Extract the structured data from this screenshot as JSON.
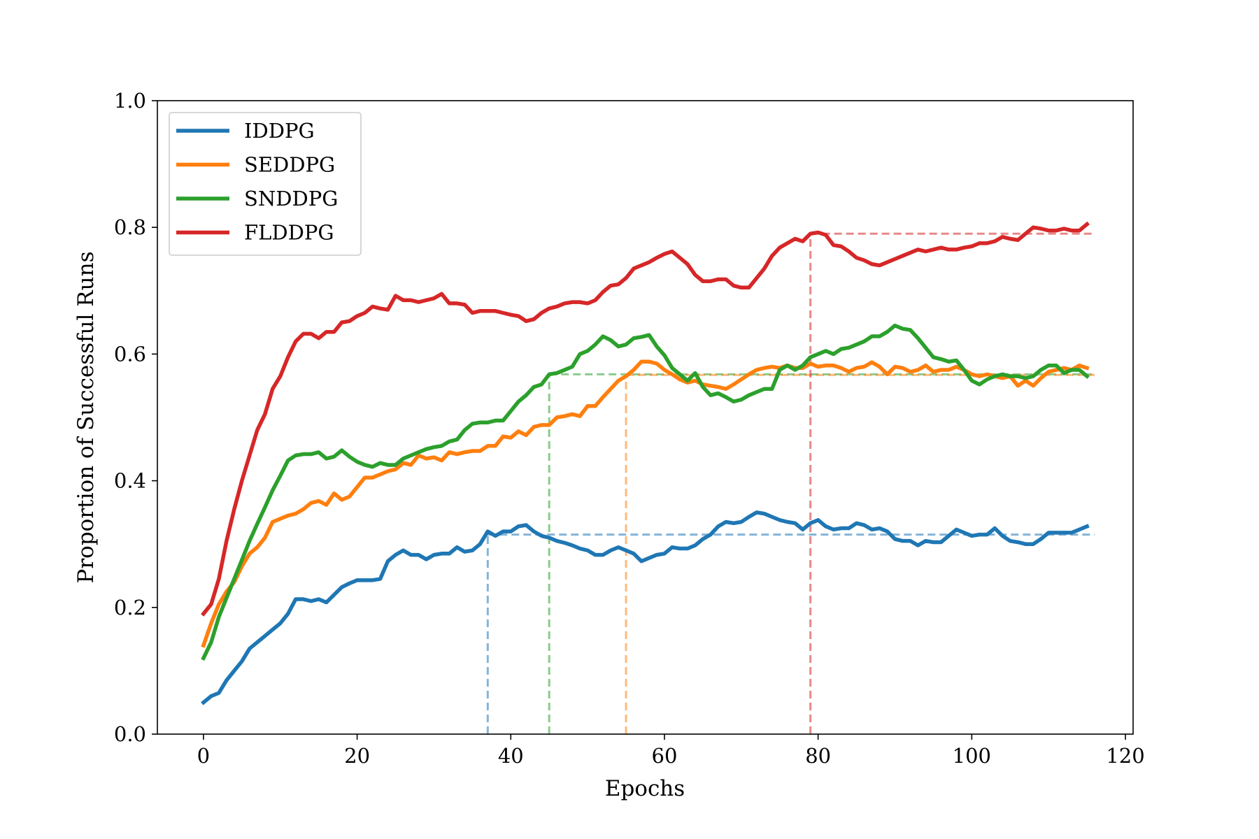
{
  "chart_data": {
    "type": "line",
    "title": "",
    "xlabel": "Epochs",
    "ylabel": "Proportion of Successful Runs",
    "xlim": [
      -6,
      121
    ],
    "ylim": [
      0.0,
      1.0
    ],
    "xticks": [
      0,
      20,
      40,
      60,
      80,
      100,
      120
    ],
    "xtick_labels": [
      "0",
      "20",
      "40",
      "60",
      "80",
      "100",
      "120"
    ],
    "yticks": [
      0.0,
      0.2,
      0.4,
      0.6,
      0.8,
      1.0
    ],
    "ytick_labels": [
      "0.0",
      "0.2",
      "0.4",
      "0.6",
      "0.8",
      "1.0"
    ],
    "grid": false,
    "legend": "top-left",
    "x": [
      0,
      1,
      2,
      3,
      4,
      5,
      6,
      7,
      8,
      9,
      10,
      11,
      12,
      13,
      14,
      15,
      16,
      17,
      18,
      19,
      20,
      21,
      22,
      23,
      24,
      25,
      26,
      27,
      28,
      29,
      30,
      31,
      32,
      33,
      34,
      35,
      36,
      37,
      38,
      39,
      40,
      41,
      42,
      43,
      44,
      45,
      46,
      47,
      48,
      49,
      50,
      51,
      52,
      53,
      54,
      55,
      56,
      57,
      58,
      59,
      60,
      61,
      62,
      63,
      64,
      65,
      66,
      67,
      68,
      69,
      70,
      71,
      72,
      73,
      74,
      75,
      76,
      77,
      78,
      79,
      80,
      81,
      82,
      83,
      84,
      85,
      86,
      87,
      88,
      89,
      90,
      91,
      92,
      93,
      94,
      95,
      96,
      97,
      98,
      99,
      100,
      101,
      102,
      103,
      104,
      105,
      106,
      107,
      108,
      109,
      110,
      111,
      112,
      113,
      114,
      115
    ],
    "series": [
      {
        "name": "IDDPG",
        "color": "#1f77b4",
        "values": [
          0.05,
          0.06,
          0.065,
          0.085,
          0.1,
          0.115,
          0.135,
          0.145,
          0.155,
          0.165,
          0.175,
          0.19,
          0.213,
          0.213,
          0.21,
          0.213,
          0.208,
          0.22,
          0.232,
          0.238,
          0.243,
          0.243,
          0.243,
          0.245,
          0.273,
          0.283,
          0.29,
          0.283,
          0.283,
          0.276,
          0.283,
          0.285,
          0.285,
          0.295,
          0.288,
          0.29,
          0.3,
          0.32,
          0.313,
          0.32,
          0.32,
          0.328,
          0.33,
          0.32,
          0.313,
          0.31,
          0.305,
          0.302,
          0.298,
          0.293,
          0.29,
          0.283,
          0.283,
          0.29,
          0.295,
          0.29,
          0.285,
          0.273,
          0.278,
          0.283,
          0.285,
          0.295,
          0.293,
          0.293,
          0.298,
          0.308,
          0.315,
          0.328,
          0.335,
          0.333,
          0.335,
          0.343,
          0.35,
          0.348,
          0.343,
          0.338,
          0.335,
          0.333,
          0.323,
          0.333,
          0.338,
          0.328,
          0.323,
          0.325,
          0.325,
          0.333,
          0.33,
          0.323,
          0.325,
          0.32,
          0.308,
          0.305,
          0.305,
          0.298,
          0.305,
          0.303,
          0.303,
          0.313,
          0.323,
          0.318,
          0.313,
          0.315,
          0.315,
          0.325,
          0.313,
          0.305,
          0.303,
          0.3,
          0.3,
          0.308,
          0.318,
          0.318,
          0.318,
          0.318,
          0.323,
          0.328
        ]
      },
      {
        "name": "SEDDPG",
        "color": "#ff7f0e",
        "values": [
          0.14,
          0.175,
          0.205,
          0.225,
          0.24,
          0.265,
          0.285,
          0.295,
          0.31,
          0.335,
          0.34,
          0.345,
          0.348,
          0.355,
          0.365,
          0.368,
          0.362,
          0.38,
          0.37,
          0.375,
          0.39,
          0.405,
          0.405,
          0.41,
          0.415,
          0.418,
          0.428,
          0.425,
          0.44,
          0.435,
          0.437,
          0.432,
          0.445,
          0.442,
          0.445,
          0.447,
          0.447,
          0.455,
          0.455,
          0.47,
          0.468,
          0.478,
          0.472,
          0.485,
          0.488,
          0.488,
          0.5,
          0.502,
          0.505,
          0.502,
          0.518,
          0.518,
          0.532,
          0.545,
          0.558,
          0.565,
          0.575,
          0.588,
          0.588,
          0.585,
          0.575,
          0.568,
          0.56,
          0.555,
          0.558,
          0.552,
          0.55,
          0.548,
          0.545,
          0.552,
          0.56,
          0.568,
          0.575,
          0.578,
          0.58,
          0.578,
          0.582,
          0.578,
          0.578,
          0.585,
          0.58,
          0.582,
          0.582,
          0.578,
          0.572,
          0.578,
          0.58,
          0.587,
          0.58,
          0.568,
          0.58,
          0.578,
          0.572,
          0.575,
          0.582,
          0.572,
          0.575,
          0.575,
          0.58,
          0.575,
          0.568,
          0.565,
          0.568,
          0.565,
          0.562,
          0.565,
          0.55,
          0.558,
          0.55,
          0.562,
          0.572,
          0.575,
          0.578,
          0.575,
          0.582,
          0.578
        ]
      },
      {
        "name": "SNDDPG",
        "color": "#2ca02c",
        "values": [
          0.12,
          0.145,
          0.185,
          0.215,
          0.245,
          0.275,
          0.305,
          0.332,
          0.358,
          0.385,
          0.408,
          0.432,
          0.44,
          0.442,
          0.442,
          0.445,
          0.435,
          0.438,
          0.448,
          0.438,
          0.43,
          0.425,
          0.422,
          0.428,
          0.425,
          0.425,
          0.435,
          0.44,
          0.445,
          0.45,
          0.453,
          0.455,
          0.462,
          0.465,
          0.48,
          0.49,
          0.492,
          0.492,
          0.495,
          0.495,
          0.51,
          0.525,
          0.535,
          0.548,
          0.552,
          0.568,
          0.57,
          0.575,
          0.58,
          0.6,
          0.605,
          0.615,
          0.628,
          0.622,
          0.612,
          0.615,
          0.625,
          0.627,
          0.63,
          0.612,
          0.598,
          0.578,
          0.568,
          0.558,
          0.57,
          0.548,
          0.535,
          0.538,
          0.532,
          0.525,
          0.528,
          0.535,
          0.54,
          0.545,
          0.545,
          0.575,
          0.582,
          0.575,
          0.582,
          0.595,
          0.6,
          0.605,
          0.6,
          0.608,
          0.61,
          0.615,
          0.62,
          0.628,
          0.628,
          0.635,
          0.645,
          0.64,
          0.638,
          0.625,
          0.61,
          0.595,
          0.592,
          0.588,
          0.59,
          0.575,
          0.558,
          0.552,
          0.56,
          0.565,
          0.568,
          0.565,
          0.565,
          0.562,
          0.565,
          0.575,
          0.582,
          0.582,
          0.57,
          0.575,
          0.575,
          0.565
        ]
      },
      {
        "name": "FLDDPG",
        "color": "#d62728",
        "values": [
          0.19,
          0.205,
          0.245,
          0.305,
          0.355,
          0.4,
          0.44,
          0.48,
          0.505,
          0.545,
          0.565,
          0.595,
          0.62,
          0.632,
          0.632,
          0.625,
          0.635,
          0.635,
          0.65,
          0.652,
          0.66,
          0.665,
          0.675,
          0.672,
          0.67,
          0.692,
          0.685,
          0.685,
          0.682,
          0.685,
          0.688,
          0.695,
          0.68,
          0.68,
          0.678,
          0.665,
          0.668,
          0.668,
          0.668,
          0.665,
          0.662,
          0.66,
          0.652,
          0.655,
          0.665,
          0.672,
          0.675,
          0.68,
          0.682,
          0.682,
          0.68,
          0.685,
          0.698,
          0.708,
          0.71,
          0.72,
          0.735,
          0.74,
          0.745,
          0.752,
          0.758,
          0.762,
          0.752,
          0.742,
          0.725,
          0.715,
          0.715,
          0.718,
          0.718,
          0.708,
          0.705,
          0.705,
          0.72,
          0.735,
          0.755,
          0.768,
          0.775,
          0.782,
          0.778,
          0.79,
          0.792,
          0.788,
          0.772,
          0.77,
          0.762,
          0.752,
          0.748,
          0.742,
          0.74,
          0.745,
          0.75,
          0.755,
          0.76,
          0.765,
          0.762,
          0.765,
          0.768,
          0.765,
          0.765,
          0.768,
          0.77,
          0.775,
          0.775,
          0.778,
          0.785,
          0.782,
          0.78,
          0.79,
          0.8,
          0.798,
          0.795,
          0.795,
          0.798,
          0.795,
          0.795,
          0.805
        ]
      }
    ],
    "reference_lines": [
      {
        "series": "IDDPG",
        "color": "#1f77b4",
        "x": 37,
        "y": 0.315,
        "x_end": 116
      },
      {
        "series": "SNDDPG",
        "color": "#2ca02c",
        "x": 45,
        "y": 0.568,
        "x_end": 116
      },
      {
        "series": "SEDDPG",
        "color": "#ff7f0e",
        "x": 55,
        "y": 0.567,
        "x_end": 116
      },
      {
        "series": "FLDDPG",
        "color": "#d62728",
        "x": 79,
        "y": 0.79,
        "x_end": 116
      }
    ]
  }
}
